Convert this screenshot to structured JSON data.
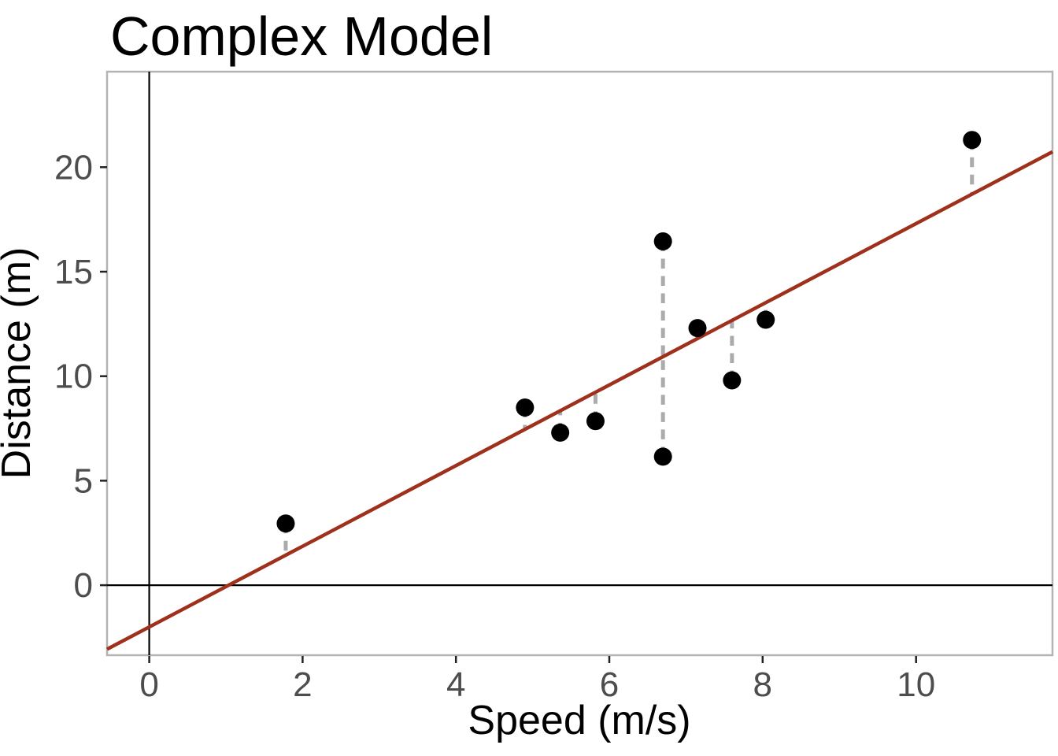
{
  "chart_data": {
    "type": "scatter",
    "title": "Complex Model",
    "xlabel": "Speed (m/s)",
    "ylabel": "Distance (m)",
    "x_ticks": [
      "0",
      "2",
      "4",
      "6",
      "8",
      "10"
    ],
    "y_ticks": [
      "0",
      "5",
      "10",
      "15",
      "20"
    ],
    "xlim": [
      -0.55,
      11.78
    ],
    "ylim": [
      -3.35,
      24.57
    ],
    "points": [
      {
        "x": 1.78,
        "y": 2.95
      },
      {
        "x": 4.9,
        "y": 8.5
      },
      {
        "x": 5.36,
        "y": 7.3
      },
      {
        "x": 5.82,
        "y": 7.85
      },
      {
        "x": 6.7,
        "y": 16.45
      },
      {
        "x": 6.7,
        "y": 6.15
      },
      {
        "x": 7.15,
        "y": 12.3
      },
      {
        "x": 7.6,
        "y": 9.8
      },
      {
        "x": 8.04,
        "y": 12.7
      },
      {
        "x": 10.73,
        "y": 21.3
      }
    ],
    "fit_line": {
      "slope": 1.93,
      "intercept": -2.0
    },
    "residuals_shown": true,
    "zero_lines_shown": true,
    "legend": "none",
    "grid": "off",
    "colors": {
      "point": "#000000",
      "fit_line": "#9E301C",
      "residual": "#ABABAB",
      "tick_label": "#4D4D4D",
      "axis_title": "#000000",
      "panel_border": "#B3B3B3",
      "zero_line": "#000000",
      "background": "#FFFFFF"
    }
  }
}
